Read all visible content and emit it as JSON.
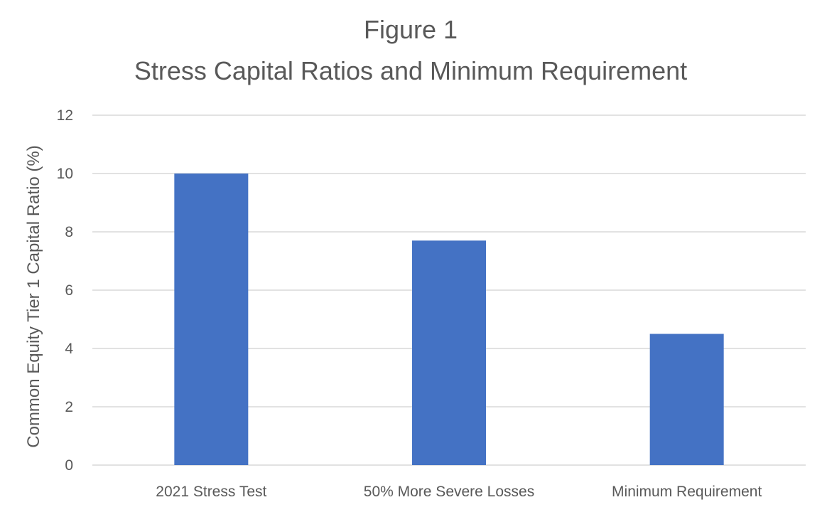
{
  "chart_data": {
    "type": "bar",
    "title_line1": "Figure 1",
    "title_line2": "Stress Capital Ratios and Minimum Requirement",
    "xlabel": "",
    "ylabel": "Common Equity Tier 1 Capital Ratio (%)",
    "categories": [
      "2021 Stress Test",
      "50% More Severe Losses",
      "Minimum Requirement"
    ],
    "values": [
      10.0,
      7.7,
      4.5
    ],
    "ylim": [
      0,
      12
    ],
    "yticks": [
      "0",
      "2",
      "4",
      "6",
      "8",
      "10",
      "12"
    ],
    "grid": true,
    "legend": "none",
    "bar_color": "#4472C4",
    "grid_color": "#D9D9D9",
    "text_color": "#595959"
  }
}
